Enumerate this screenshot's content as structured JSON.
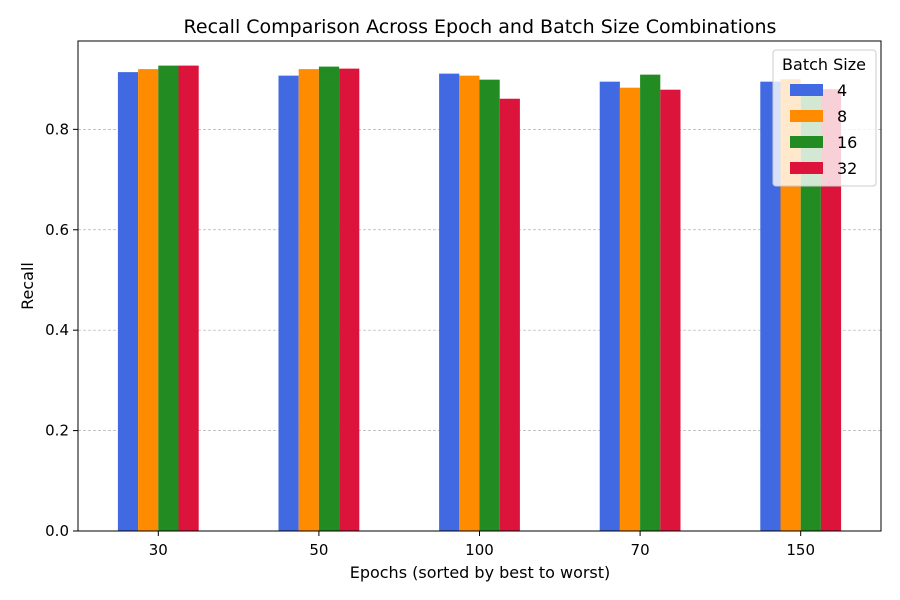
{
  "chart_data": {
    "type": "bar",
    "title": "Recall Comparison Across Epoch and Batch Size Combinations",
    "xlabel": "Epochs (sorted by best to worst)",
    "ylabel": "Recall",
    "categories": [
      "30",
      "50",
      "100",
      "70",
      "150"
    ],
    "ylim": [
      0,
      0.976
    ],
    "yticks": [
      "0.0",
      "0.2",
      "0.4",
      "0.6",
      "0.8"
    ],
    "grid": "y-dashed",
    "legend": {
      "title": "Batch Size",
      "placement": "top-right"
    },
    "series": [
      {
        "name": "4",
        "color": "#4169E1",
        "values": [
          0.914,
          0.907,
          0.911,
          0.895,
          0.895
        ]
      },
      {
        "name": "8",
        "color": "#FF8C00",
        "values": [
          0.92,
          0.92,
          0.907,
          0.883,
          0.9
        ]
      },
      {
        "name": "16",
        "color": "#228B22",
        "values": [
          0.927,
          0.925,
          0.899,
          0.909,
          0.89
        ]
      },
      {
        "name": "32",
        "color": "#DC143C",
        "values": [
          0.927,
          0.921,
          0.861,
          0.879,
          0.88
        ]
      }
    ]
  }
}
